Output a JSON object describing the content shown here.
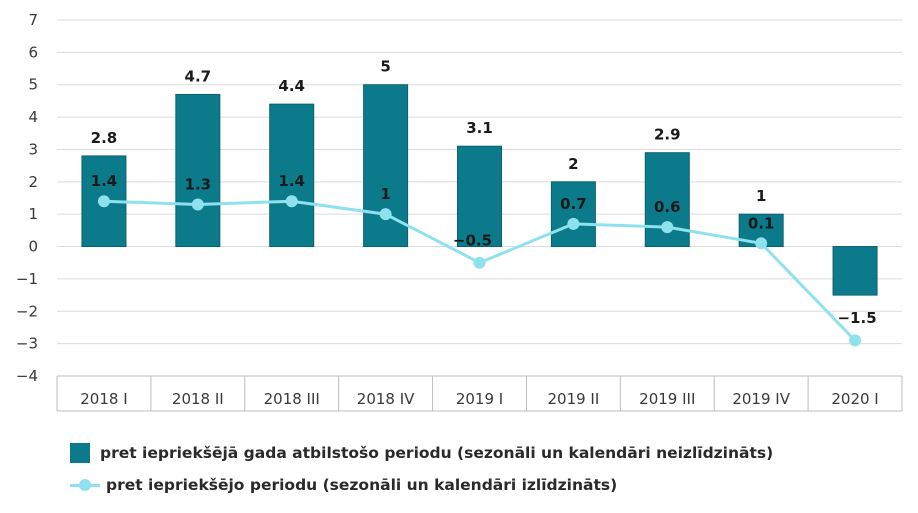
{
  "chart_data": {
    "type": "bar",
    "categories": [
      "2018 I",
      "2018 II",
      "2018 III",
      "2018 IV",
      "2019 I",
      "2019 II",
      "2019 III",
      "2019 IV",
      "2020 I"
    ],
    "series": [
      {
        "name": "pret iepriekšējā gada atbilstošo periodu (sezonāli un kalendāri neizlīdzināts)",
        "type": "bar",
        "values": [
          2.8,
          4.7,
          4.4,
          5,
          3.1,
          2,
          2.9,
          1,
          -1.5
        ],
        "labels": [
          "2.8",
          "4.7",
          "4.4",
          "5",
          "3.1",
          "2",
          "2.9",
          "1",
          "−1.5"
        ],
        "color": "#0b7b8c"
      },
      {
        "name": "pret iepriekšējo periodu (sezonāli un kalendāri izlīdzināts)",
        "type": "line",
        "values": [
          1.4,
          1.3,
          1.4,
          1,
          -0.5,
          0.7,
          0.6,
          0.1,
          -2.9
        ],
        "labels": [
          "1.4",
          "1.3",
          "1.4",
          "1",
          "−0.5",
          "0.7",
          "0.6",
          "0.1",
          ""
        ],
        "color": "#8fe1ee"
      }
    ],
    "y_ticks": [
      "7",
      "6",
      "5",
      "4",
      "3",
      "2",
      "1",
      "0",
      "−1",
      "−2",
      "−3",
      "−4"
    ],
    "ylim": [
      -4,
      7
    ],
    "grid": true,
    "legend_position": "bottom-left"
  }
}
